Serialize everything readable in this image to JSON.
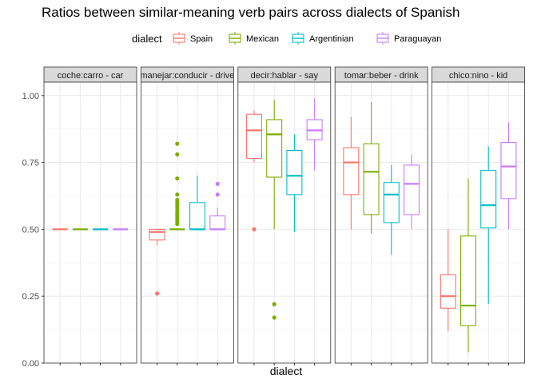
{
  "chart_data": {
    "type": "boxplot",
    "title": "Ratios between similar-meaning verb pairs across dialects of Spanish",
    "xlabel": "dialect",
    "ylabel": "",
    "ylim": [
      0,
      1.05
    ],
    "y_ticks": [
      0.0,
      0.25,
      0.5,
      0.75,
      1.0
    ],
    "y_tick_labels": [
      "0.00",
      "0.25",
      "0.50",
      "0.75",
      "1.00"
    ],
    "grid": true,
    "legend": {
      "title": "dialect",
      "position": "top",
      "entries": [
        {
          "name": "Spain",
          "color": "#F8766D"
        },
        {
          "name": "Mexican",
          "color": "#7CAE00"
        },
        {
          "name": "Argentinian",
          "color": "#00BFC4"
        },
        {
          "name": "Paraguayan",
          "color": "#C77CFF"
        }
      ]
    },
    "facets": [
      {
        "label": "coche:carro - car",
        "boxes": [
          {
            "dialect": "Spain",
            "min": 0.5,
            "q1": 0.5,
            "median": 0.5,
            "q3": 0.5,
            "max": 0.5,
            "outliers": []
          },
          {
            "dialect": "Mexican",
            "min": 0.5,
            "q1": 0.5,
            "median": 0.5,
            "q3": 0.5,
            "max": 0.5,
            "outliers": []
          },
          {
            "dialect": "Argentinian",
            "min": 0.5,
            "q1": 0.5,
            "median": 0.5,
            "q3": 0.5,
            "max": 0.5,
            "outliers": []
          },
          {
            "dialect": "Paraguayan",
            "min": 0.5,
            "q1": 0.5,
            "median": 0.5,
            "q3": 0.5,
            "max": 0.5,
            "outliers": []
          }
        ]
      },
      {
        "label": "manejar:conducir - drive",
        "boxes": [
          {
            "dialect": "Spain",
            "min": 0.44,
            "q1": 0.46,
            "median": 0.49,
            "q3": 0.5,
            "max": 0.5,
            "outliers": [
              0.26
            ]
          },
          {
            "dialect": "Mexican",
            "min": 0.5,
            "q1": 0.5,
            "median": 0.5,
            "q3": 0.5,
            "max": 0.5,
            "outliers": [
              0.52,
              0.53,
              0.54,
              0.55,
              0.56,
              0.57,
              0.58,
              0.59,
              0.6,
              0.61,
              0.63,
              0.69,
              0.78,
              0.82
            ]
          },
          {
            "dialect": "Argentinian",
            "min": 0.5,
            "q1": 0.5,
            "median": 0.5,
            "q3": 0.6,
            "max": 0.7,
            "outliers": []
          },
          {
            "dialect": "Paraguayan",
            "min": 0.5,
            "q1": 0.5,
            "median": 0.5,
            "q3": 0.55,
            "max": 0.58,
            "outliers": [
              0.63,
              0.67
            ]
          }
        ]
      },
      {
        "label": "decir:hablar - say",
        "boxes": [
          {
            "dialect": "Spain",
            "min": 0.75,
            "q1": 0.765,
            "median": 0.87,
            "q3": 0.93,
            "max": 0.945,
            "outliers": [
              0.5
            ]
          },
          {
            "dialect": "Mexican",
            "min": 0.5,
            "q1": 0.695,
            "median": 0.855,
            "q3": 0.91,
            "max": 0.985,
            "outliers": [
              0.22,
              0.17
            ]
          },
          {
            "dialect": "Argentinian",
            "min": 0.49,
            "q1": 0.63,
            "median": 0.7,
            "q3": 0.795,
            "max": 0.855,
            "outliers": []
          },
          {
            "dialect": "Paraguayan",
            "min": 0.72,
            "q1": 0.835,
            "median": 0.87,
            "q3": 0.91,
            "max": 0.99,
            "outliers": []
          }
        ]
      },
      {
        "label": "tomar:beber - drink",
        "boxes": [
          {
            "dialect": "Spain",
            "min": 0.5,
            "q1": 0.63,
            "median": 0.75,
            "q3": 0.805,
            "max": 0.92,
            "outliers": []
          },
          {
            "dialect": "Mexican",
            "min": 0.485,
            "q1": 0.555,
            "median": 0.715,
            "q3": 0.82,
            "max": 0.975,
            "outliers": []
          },
          {
            "dialect": "Argentinian",
            "min": 0.405,
            "q1": 0.525,
            "median": 0.63,
            "q3": 0.675,
            "max": 0.74,
            "outliers": []
          },
          {
            "dialect": "Paraguayan",
            "min": 0.5,
            "q1": 0.555,
            "median": 0.67,
            "q3": 0.74,
            "max": 0.78,
            "outliers": []
          }
        ]
      },
      {
        "label": "chico:nino - kid",
        "boxes": [
          {
            "dialect": "Spain",
            "min": 0.12,
            "q1": 0.205,
            "median": 0.25,
            "q3": 0.33,
            "max": 0.5,
            "outliers": []
          },
          {
            "dialect": "Mexican",
            "min": 0.04,
            "q1": 0.14,
            "median": 0.215,
            "q3": 0.475,
            "max": 0.69,
            "outliers": []
          },
          {
            "dialect": "Argentinian",
            "min": 0.22,
            "q1": 0.505,
            "median": 0.59,
            "q3": 0.72,
            "max": 0.81,
            "outliers": []
          },
          {
            "dialect": "Paraguayan",
            "min": 0.5,
            "q1": 0.615,
            "median": 0.735,
            "q3": 0.825,
            "max": 0.9,
            "outliers": []
          }
        ]
      }
    ]
  }
}
